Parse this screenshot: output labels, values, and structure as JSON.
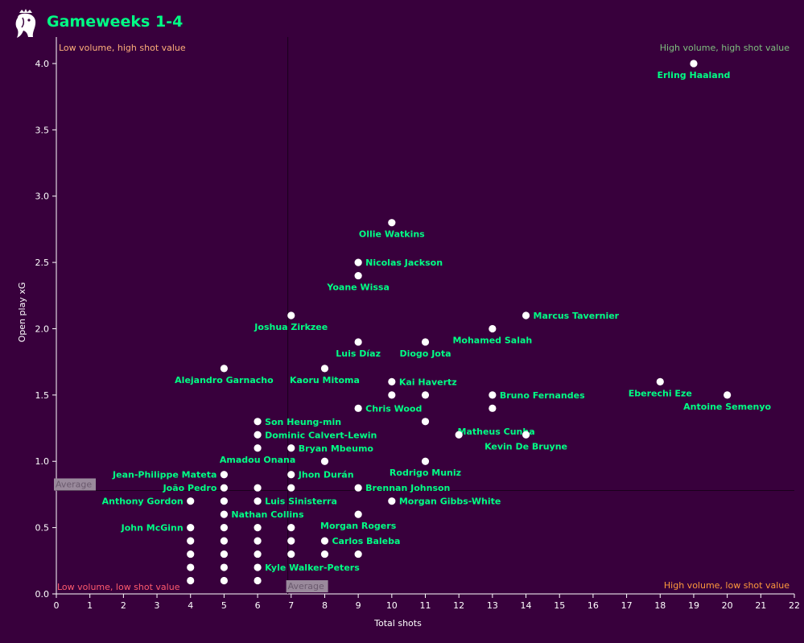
{
  "header": {
    "title": "Gameweeks 1-4",
    "logo_icon": "premier-league-lion-icon"
  },
  "colors": {
    "background": "#38003c",
    "title": "#00ff85",
    "label": "#00ff85",
    "axis": "#ffffff",
    "point": "#ffffff",
    "quad_top_left": "#ffb07a",
    "quad_top_right": "#7fbf7f",
    "quad_bottom_left": "#ff5a6e",
    "quad_bottom_right": "#ff9a3c",
    "average_bg": "#9a8a9c",
    "average_text": "#6b5a6e"
  },
  "chart_data": {
    "type": "scatter",
    "xlabel": "Total shots",
    "ylabel": "Open play xG",
    "xlim": [
      0,
      22
    ],
    "ylim": [
      0,
      4.2
    ],
    "xticks": [
      0,
      1,
      2,
      3,
      4,
      5,
      6,
      7,
      8,
      9,
      10,
      11,
      12,
      13,
      14,
      15,
      16,
      17,
      18,
      19,
      20,
      21,
      22
    ],
    "yticks": [
      "0.0",
      "0.5",
      "1.0",
      "1.5",
      "2.0",
      "2.5",
      "3.0",
      "3.5",
      "4.0"
    ],
    "x_average": 6.9,
    "y_average": 0.78,
    "average_label": "Average",
    "quadrant_labels": {
      "top_left": "Low volume, high shot value",
      "top_right": "High volume, high shot value",
      "bottom_left": "Low volume, low shot value",
      "bottom_right": "High volume, low shot value"
    },
    "points": [
      {
        "x": 19,
        "y": 4.0,
        "label": "Erling Haaland",
        "pos": "below"
      },
      {
        "x": 10,
        "y": 2.8,
        "label": "Ollie Watkins",
        "pos": "below"
      },
      {
        "x": 9,
        "y": 2.5,
        "label": "Nicolas Jackson",
        "pos": "right"
      },
      {
        "x": 9,
        "y": 2.4,
        "label": "Yoane Wissa",
        "pos": "below"
      },
      {
        "x": 7,
        "y": 2.1,
        "label": "Joshua Zirkzee",
        "pos": "below"
      },
      {
        "x": 14,
        "y": 2.1,
        "label": "Marcus Tavernier",
        "pos": "right"
      },
      {
        "x": 13,
        "y": 2.0,
        "label": "Mohamed Salah",
        "pos": "below"
      },
      {
        "x": 9,
        "y": 1.9,
        "label": "Luis Díaz",
        "pos": "below"
      },
      {
        "x": 11,
        "y": 1.9,
        "label": "Diogo Jota",
        "pos": "below"
      },
      {
        "x": 5,
        "y": 1.7,
        "label": "Alejandro Garnacho",
        "pos": "below"
      },
      {
        "x": 8,
        "y": 1.7,
        "label": "Kaoru Mitoma",
        "pos": "below"
      },
      {
        "x": 10,
        "y": 1.6,
        "label": "Kai Havertz",
        "pos": "right"
      },
      {
        "x": 18,
        "y": 1.6,
        "label": "Eberechi Eze",
        "pos": "below"
      },
      {
        "x": 10,
        "y": 1.5,
        "label": "",
        "pos": "none"
      },
      {
        "x": 11,
        "y": 1.5,
        "label": "",
        "pos": "none"
      },
      {
        "x": 13,
        "y": 1.5,
        "label": "Bruno Fernandes",
        "pos": "right"
      },
      {
        "x": 20,
        "y": 1.5,
        "label": "Antoine Semenyo",
        "pos": "below"
      },
      {
        "x": 9,
        "y": 1.4,
        "label": "Chris Wood",
        "pos": "right"
      },
      {
        "x": 13,
        "y": 1.4,
        "label": "",
        "pos": "none"
      },
      {
        "x": 6,
        "y": 1.3,
        "label": "Son Heung-min",
        "pos": "right"
      },
      {
        "x": 11,
        "y": 1.3,
        "label": "Matheus Cunha",
        "pos": "br"
      },
      {
        "x": 6,
        "y": 1.2,
        "label": "Dominic Calvert-Lewin",
        "pos": "right"
      },
      {
        "x": 12,
        "y": 1.2,
        "label": "",
        "pos": "none"
      },
      {
        "x": 14,
        "y": 1.2,
        "label": "Kevin De Bruyne",
        "pos": "below"
      },
      {
        "x": 6,
        "y": 1.1,
        "label": "Amadou Onana",
        "pos": "below"
      },
      {
        "x": 7,
        "y": 1.1,
        "label": "Bryan Mbeumo",
        "pos": "right"
      },
      {
        "x": 8,
        "y": 1.0,
        "label": "",
        "pos": "none"
      },
      {
        "x": 11,
        "y": 1.0,
        "label": "Rodrigo Muniz",
        "pos": "below"
      },
      {
        "x": 5,
        "y": 0.9,
        "label": "Jean-Philippe Mateta",
        "pos": "left"
      },
      {
        "x": 7,
        "y": 0.9,
        "label": "Jhon Durán",
        "pos": "right"
      },
      {
        "x": 5,
        "y": 0.8,
        "label": "João Pedro",
        "pos": "left"
      },
      {
        "x": 6,
        "y": 0.8,
        "label": "",
        "pos": "none"
      },
      {
        "x": 7,
        "y": 0.8,
        "label": "",
        "pos": "none"
      },
      {
        "x": 9,
        "y": 0.8,
        "label": "Brennan Johnson",
        "pos": "right"
      },
      {
        "x": 4,
        "y": 0.7,
        "label": "Anthony Gordon",
        "pos": "left"
      },
      {
        "x": 5,
        "y": 0.7,
        "label": "",
        "pos": "none"
      },
      {
        "x": 6,
        "y": 0.7,
        "label": "Luis Sinisterra",
        "pos": "right"
      },
      {
        "x": 10,
        "y": 0.7,
        "label": "Morgan Gibbs-White",
        "pos": "right"
      },
      {
        "x": 5,
        "y": 0.6,
        "label": "Nathan Collins",
        "pos": "right"
      },
      {
        "x": 9,
        "y": 0.6,
        "label": "Morgan Rogers",
        "pos": "below"
      },
      {
        "x": 4,
        "y": 0.5,
        "label": "John McGinn",
        "pos": "left"
      },
      {
        "x": 5,
        "y": 0.5,
        "label": "",
        "pos": "none"
      },
      {
        "x": 6,
        "y": 0.5,
        "label": "",
        "pos": "none"
      },
      {
        "x": 7,
        "y": 0.5,
        "label": "",
        "pos": "none"
      },
      {
        "x": 4,
        "y": 0.4,
        "label": "",
        "pos": "none"
      },
      {
        "x": 5,
        "y": 0.4,
        "label": "",
        "pos": "none"
      },
      {
        "x": 6,
        "y": 0.4,
        "label": "",
        "pos": "none"
      },
      {
        "x": 7,
        "y": 0.4,
        "label": "",
        "pos": "none"
      },
      {
        "x": 8,
        "y": 0.4,
        "label": "Carlos Baleba",
        "pos": "right"
      },
      {
        "x": 4,
        "y": 0.3,
        "label": "",
        "pos": "none"
      },
      {
        "x": 5,
        "y": 0.3,
        "label": "",
        "pos": "none"
      },
      {
        "x": 6,
        "y": 0.3,
        "label": "",
        "pos": "none"
      },
      {
        "x": 7,
        "y": 0.3,
        "label": "",
        "pos": "none"
      },
      {
        "x": 8,
        "y": 0.3,
        "label": "",
        "pos": "none"
      },
      {
        "x": 9,
        "y": 0.3,
        "label": "",
        "pos": "none"
      },
      {
        "x": 4,
        "y": 0.2,
        "label": "",
        "pos": "none"
      },
      {
        "x": 5,
        "y": 0.2,
        "label": "",
        "pos": "none"
      },
      {
        "x": 6,
        "y": 0.2,
        "label": "Kyle Walker-Peters",
        "pos": "right"
      },
      {
        "x": 4,
        "y": 0.1,
        "label": "",
        "pos": "none"
      },
      {
        "x": 5,
        "y": 0.1,
        "label": "",
        "pos": "none"
      },
      {
        "x": 6,
        "y": 0.1,
        "label": "",
        "pos": "none"
      }
    ]
  }
}
